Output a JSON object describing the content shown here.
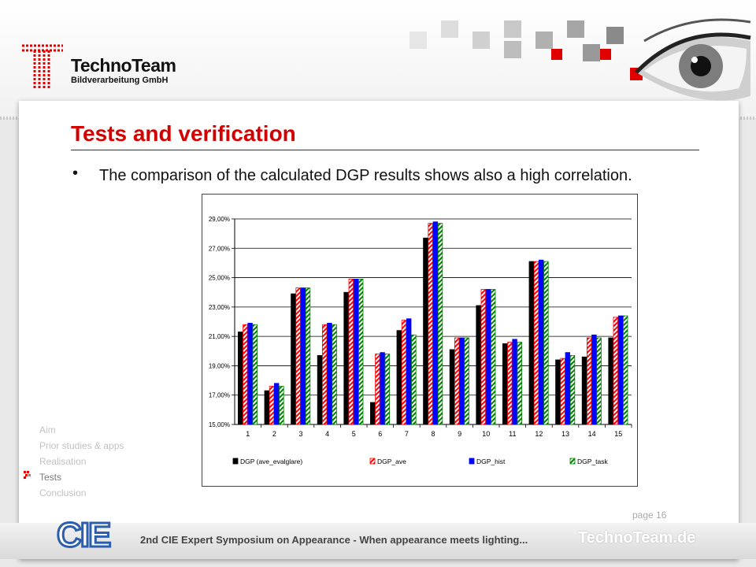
{
  "brand": {
    "name": "TechnoTeam",
    "subtitle": "Bildverarbeitung GmbH"
  },
  "slide": {
    "title": "Tests and verification",
    "bullet": "The comparison of the calculated DGP results shows also a high correlation."
  },
  "nav": {
    "items": [
      {
        "label": "Aim",
        "active": false
      },
      {
        "label": "Prior studies & apps",
        "active": false
      },
      {
        "label": "Realisation",
        "active": false
      },
      {
        "label": "Tests",
        "active": true
      },
      {
        "label": "Conclusion",
        "active": false
      }
    ]
  },
  "footer": {
    "page": "page 16",
    "text": "2nd CIE Expert Symposium on Appearance  - When appearance meets lighting...",
    "brand": "TechnoTeam.de",
    "logo_text": "CIE"
  },
  "chart_data": {
    "type": "bar",
    "categories": [
      "1",
      "2",
      "3",
      "4",
      "5",
      "6",
      "7",
      "8",
      "9",
      "10",
      "11",
      "12",
      "13",
      "14",
      "15"
    ],
    "ylim": [
      15,
      29
    ],
    "yticks": [
      "15,00%",
      "17,00%",
      "19,00%",
      "21,00%",
      "23,00%",
      "25,00%",
      "27,00%",
      "29,00%"
    ],
    "grid": true,
    "legend_position": "bottom",
    "series": [
      {
        "name": "DGP (ave_evalglare)",
        "color": "#000000",
        "pattern": "solid",
        "values": [
          21.3,
          17.3,
          23.9,
          19.7,
          24.0,
          16.5,
          21.4,
          27.7,
          20.1,
          23.1,
          20.5,
          26.1,
          19.4,
          19.6,
          20.9
        ]
      },
      {
        "name": "DGP_ave",
        "color": "#ff0000",
        "pattern": "hatch",
        "values": [
          21.8,
          17.6,
          24.3,
          21.8,
          24.9,
          19.8,
          22.1,
          28.7,
          20.9,
          24.2,
          20.6,
          26.1,
          19.5,
          20.9,
          22.3
        ]
      },
      {
        "name": "DGP_hist",
        "color": "#0000ff",
        "pattern": "solid",
        "values": [
          21.9,
          17.8,
          24.3,
          21.9,
          24.9,
          19.9,
          22.2,
          28.8,
          20.9,
          24.2,
          20.8,
          26.2,
          19.9,
          21.1,
          22.4
        ]
      },
      {
        "name": "DGP_task",
        "color": "#008000",
        "pattern": "hatch",
        "values": [
          21.8,
          17.6,
          24.3,
          21.8,
          24.9,
          19.8,
          21.1,
          28.7,
          20.9,
          24.2,
          20.6,
          26.1,
          19.7,
          20.9,
          22.4
        ]
      }
    ]
  }
}
